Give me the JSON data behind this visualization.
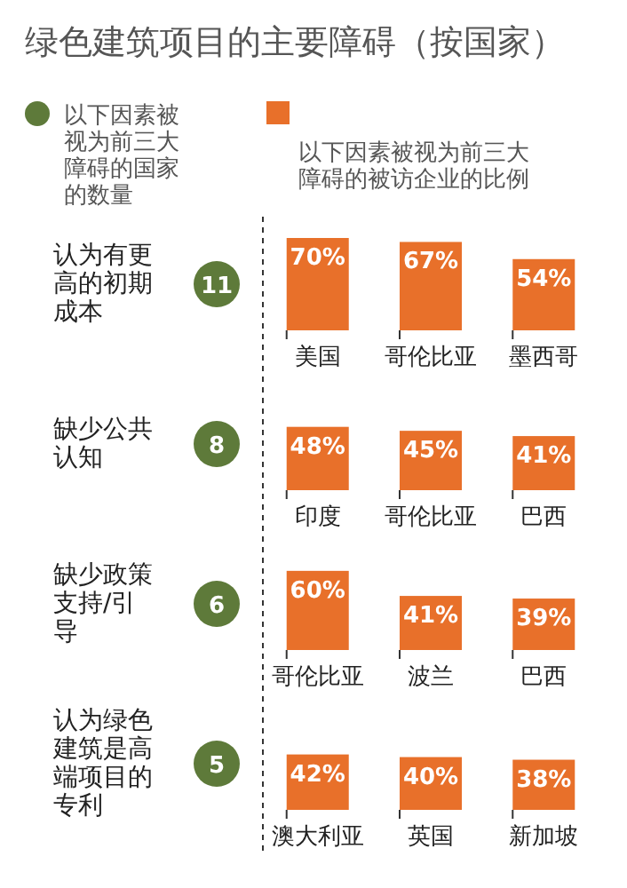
{
  "chart_data": [
    {
      "type": "other",
      "title": "绿色建筑项目的主要障碍（按国家）",
      "annotations": [
        "以下因素被视为前三大障碍的国家的数量",
        "以下因素被视为前三大障碍的被访企业的比例"
      ],
      "colors": [
        "#5e7a3a",
        "#e8702a"
      ]
    },
    {
      "type": "bar",
      "ylabel": "认为有更高的初期成本",
      "annotations": [
        "11"
      ],
      "categories": [
        "美国",
        "哥伦比亚",
        "墨西哥"
      ],
      "values": [
        70,
        67,
        54
      ],
      "value_labels": [
        "70%",
        "67%",
        "54%"
      ],
      "color": "#e8702a"
    },
    {
      "type": "bar",
      "ylabel": "缺少公共认知",
      "annotations": [
        "8"
      ],
      "categories": [
        "印度",
        "哥伦比亚",
        "巴西"
      ],
      "values": [
        48,
        45,
        41
      ],
      "value_labels": [
        "48%",
        "45%",
        "41%"
      ],
      "color": "#e8702a"
    },
    {
      "type": "bar",
      "ylabel": "缺少政策支持/引导",
      "annotations": [
        "6"
      ],
      "categories": [
        "哥伦比亚",
        "波兰",
        "巴西"
      ],
      "values": [
        60,
        41,
        39
      ],
      "value_labels": [
        "60%",
        "41%",
        "39%"
      ],
      "color": "#e8702a"
    },
    {
      "type": "bar",
      "ylabel": "认为绿色建筑是高端项目的专利",
      "annotations": [
        "5"
      ],
      "categories": [
        "澳大利亚",
        "英国",
        "新加坡"
      ],
      "values": [
        42,
        40,
        38
      ],
      "value_labels": [
        "42%",
        "40%",
        "38%"
      ],
      "color": "#e8702a"
    }
  ]
}
